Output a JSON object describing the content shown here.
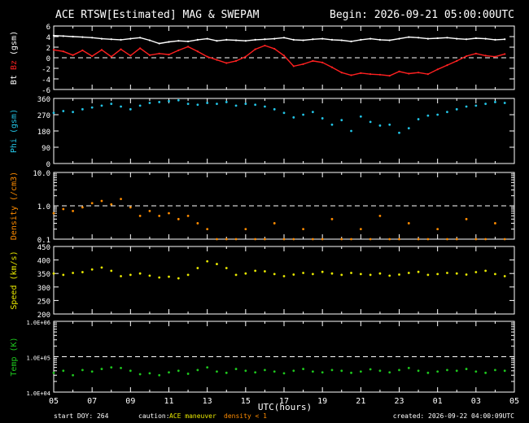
{
  "header": {
    "title": "ACE RTSW[Estimated] MAG & SWEPAM",
    "begin": "Begin: 2026-09-21 05:00:00UTC"
  },
  "footer": {
    "start_doy": "start DOY: 264",
    "caution_label": "caution:",
    "maneuver": "ACE maneuver",
    "density_note": "density < 1",
    "created": "created: 2026-09-22 04:00:09UTC"
  },
  "colors": {
    "bt": "#ffffff",
    "bz": "#ff2020",
    "phi": "#22c4e6",
    "density": "#ff8c00",
    "speed": "#e8e800",
    "temp": "#1ec81e",
    "axis": "#ffffff",
    "background": "#000000"
  },
  "chart_data": [
    {
      "type": "line",
      "panel": "mag",
      "ylabel_parts": [
        "Bt",
        "Bz",
        "(gsm)"
      ],
      "ylim": [
        -6,
        6
      ],
      "yticks": [
        "6",
        "4",
        "2",
        "0",
        "-2",
        "-4",
        "-6"
      ],
      "reference_line": 0,
      "series": [
        {
          "name": "Bt",
          "x": [
            0,
            0.5,
            1,
            1.5,
            2,
            2.5,
            3,
            3.5,
            4,
            4.5,
            5,
            5.5,
            6,
            6.5,
            7,
            7.5,
            8,
            8.5,
            9,
            9.5,
            10,
            10.5,
            11,
            11.5,
            12,
            12.5,
            13,
            13.5,
            14,
            14.5,
            15,
            15.5,
            16,
            16.5,
            17,
            17.5,
            18,
            18.5,
            19,
            19.5,
            20,
            20.5,
            21,
            21.5,
            22,
            22.5,
            23,
            23.5
          ],
          "y": [
            4.2,
            4.1,
            4.0,
            3.9,
            3.8,
            3.6,
            3.5,
            3.4,
            3.6,
            3.8,
            3.3,
            2.7,
            3.0,
            3.2,
            3.1,
            3.4,
            3.6,
            3.2,
            3.4,
            3.3,
            3.2,
            3.4,
            3.5,
            3.6,
            3.8,
            3.4,
            3.3,
            3.5,
            3.6,
            3.4,
            3.3,
            3.1,
            3.4,
            3.6,
            3.4,
            3.3,
            3.6,
            3.9,
            3.8,
            3.6,
            3.7,
            3.8,
            3.6,
            3.5,
            3.7,
            3.6,
            3.4,
            3.5
          ]
        },
        {
          "name": "Bz",
          "x": [
            0,
            0.5,
            1,
            1.5,
            2,
            2.5,
            3,
            3.5,
            4,
            4.5,
            5,
            5.5,
            6,
            6.5,
            7,
            7.5,
            8,
            8.5,
            9,
            9.5,
            10,
            10.5,
            11,
            11.5,
            12,
            12.5,
            13,
            13.5,
            14,
            14.5,
            15,
            15.5,
            16,
            16.5,
            17,
            17.5,
            18,
            18.5,
            19,
            19.5,
            20,
            20.5,
            21,
            21.5,
            22,
            22.5,
            23,
            23.5
          ],
          "y": [
            1.5,
            1.2,
            0.5,
            1.4,
            0.3,
            1.5,
            0.2,
            1.6,
            0.4,
            1.8,
            0.5,
            0.8,
            0.6,
            1.4,
            2.1,
            1.2,
            0.2,
            -0.4,
            -1.0,
            -0.6,
            0.2,
            1.6,
            2.3,
            1.7,
            0.4,
            -1.6,
            -1.2,
            -0.6,
            -0.9,
            -1.8,
            -2.8,
            -3.3,
            -2.9,
            -3.1,
            -3.2,
            -3.4,
            -2.6,
            -3.0,
            -2.8,
            -3.1,
            -2.2,
            -1.4,
            -0.6,
            0.3,
            0.8,
            0.4,
            0.2,
            0.7
          ]
        }
      ]
    },
    {
      "type": "scatter",
      "panel": "phi",
      "ylabel_parts": [
        "Phi",
        "(gsm)"
      ],
      "ylim": [
        0,
        360
      ],
      "yticks": [
        "360",
        "270",
        "180",
        "90",
        "0"
      ],
      "series": [
        {
          "name": "Phi",
          "x": [
            0,
            0.5,
            1,
            1.5,
            2,
            2.5,
            3,
            3.5,
            4,
            4.5,
            5,
            5.5,
            6,
            6.5,
            7,
            7.5,
            8,
            8.5,
            9,
            9.5,
            10,
            10.5,
            11,
            11.5,
            12,
            12.5,
            13,
            13.5,
            14,
            14.5,
            15,
            15.5,
            16,
            16.5,
            17,
            17.5,
            18,
            18.5,
            19,
            19.5,
            20,
            20.5,
            21,
            21.5,
            22,
            22.5,
            23,
            23.5
          ],
          "y": [
            280,
            290,
            285,
            300,
            310,
            320,
            330,
            315,
            300,
            320,
            335,
            340,
            345,
            350,
            330,
            325,
            335,
            330,
            340,
            320,
            330,
            325,
            315,
            300,
            280,
            255,
            270,
            285,
            250,
            215,
            240,
            180,
            260,
            230,
            210,
            215,
            170,
            195,
            245,
            265,
            270,
            285,
            300,
            315,
            320,
            330,
            340,
            335
          ]
        }
      ]
    },
    {
      "type": "scatter",
      "panel": "density",
      "ylabel_parts": [
        "Density",
        "(/cm3)"
      ],
      "yscale": "log",
      "ylim": [
        0.1,
        10.0
      ],
      "yticks": [
        "10.0",
        "1.0",
        "0.1"
      ],
      "reference_line": 1.0,
      "series": [
        {
          "name": "Density",
          "x": [
            0,
            0.5,
            1,
            1.5,
            2,
            2.5,
            3,
            3.5,
            4,
            4.5,
            5,
            5.5,
            6,
            6.5,
            7,
            7.5,
            8,
            8.5,
            9,
            9.5,
            10,
            10.5,
            11,
            11.5,
            12,
            12.5,
            13,
            13.5,
            14,
            14.5,
            15,
            15.5,
            16,
            16.5,
            17,
            17.5,
            18,
            18.5,
            19,
            19.5,
            20,
            20.5,
            21,
            21.5,
            22,
            22.5,
            23,
            23.5
          ],
          "y": [
            0.6,
            0.8,
            0.7,
            0.9,
            1.2,
            1.4,
            1.1,
            1.6,
            0.9,
            0.5,
            0.7,
            0.5,
            0.6,
            0.4,
            0.5,
            0.3,
            0.2,
            0.1,
            0.1,
            0.1,
            0.2,
            0.1,
            0.1,
            0.3,
            0.1,
            0.1,
            0.2,
            0.1,
            0.1,
            0.4,
            0.1,
            0.1,
            0.2,
            0.1,
            0.5,
            0.1,
            0.1,
            0.3,
            0.1,
            0.1,
            0.2,
            0.1,
            0.1,
            0.4,
            0.1,
            0.1,
            0.3,
            0.1
          ]
        }
      ]
    },
    {
      "type": "scatter",
      "panel": "speed",
      "ylabel_parts": [
        "Speed",
        "(km/s)"
      ],
      "ylim": [
        200,
        450
      ],
      "yticks": [
        "450",
        "400",
        "350",
        "300",
        "250",
        "200"
      ],
      "series": [
        {
          "name": "Speed",
          "x": [
            0,
            0.5,
            1,
            1.5,
            2,
            2.5,
            3,
            3.5,
            4,
            4.5,
            5,
            5.5,
            6,
            6.5,
            7,
            7.5,
            8,
            8.5,
            9,
            9.5,
            10,
            10.5,
            11,
            11.5,
            12,
            12.5,
            13,
            13.5,
            14,
            14.5,
            15,
            15.5,
            16,
            16.5,
            17,
            17.5,
            18,
            18.5,
            19,
            19.5,
            20,
            20.5,
            21,
            21.5,
            22,
            22.5,
            23,
            23.5
          ],
          "y": [
            350,
            345,
            352,
            355,
            365,
            372,
            360,
            340,
            345,
            350,
            342,
            335,
            338,
            332,
            345,
            370,
            395,
            385,
            370,
            345,
            350,
            360,
            358,
            348,
            340,
            346,
            352,
            348,
            356,
            350,
            345,
            352,
            348,
            345,
            350,
            342,
            346,
            352,
            356,
            345,
            348,
            352,
            350,
            346,
            355,
            360,
            348,
            340
          ]
        }
      ]
    },
    {
      "type": "scatter",
      "panel": "temp",
      "ylabel_parts": [
        "Temp",
        "(K)"
      ],
      "yscale": "log",
      "ylim": [
        10000,
        1000000
      ],
      "yticks": [
        "1.0E+06",
        "1.0E+05",
        "1.0E+04"
      ],
      "reference_line": 100000,
      "series": [
        {
          "name": "Temp",
          "x": [
            0,
            0.5,
            1,
            1.5,
            2,
            2.5,
            3,
            3.5,
            4,
            4.5,
            5,
            5.5,
            6,
            6.5,
            7,
            7.5,
            8,
            8.5,
            9,
            9.5,
            10,
            10.5,
            11,
            11.5,
            12,
            12.5,
            13,
            13.5,
            14,
            14.5,
            15,
            15.5,
            16,
            16.5,
            17,
            17.5,
            18,
            18.5,
            19,
            19.5,
            20,
            20.5,
            21,
            21.5,
            22,
            22.5,
            23,
            23.5
          ],
          "y": [
            35000,
            40000,
            30000,
            42000,
            38000,
            45000,
            50000,
            48000,
            40000,
            32000,
            34000,
            30000,
            36000,
            40000,
            33000,
            42000,
            50000,
            38000,
            35000,
            45000,
            40000,
            36000,
            42000,
            38000,
            34000,
            40000,
            45000,
            38000,
            36000,
            42000,
            40000,
            35000,
            38000,
            44000,
            40000,
            36000,
            42000,
            48000,
            40000,
            35000,
            38000,
            42000,
            40000,
            45000,
            38000,
            35000,
            42000,
            40000
          ]
        }
      ]
    }
  ],
  "x_axis": {
    "label": "UTC(hours)",
    "ticks": [
      "05",
      "07",
      "09",
      "11",
      "13",
      "15",
      "17",
      "19",
      "21",
      "23",
      "01",
      "03",
      "05"
    ]
  }
}
